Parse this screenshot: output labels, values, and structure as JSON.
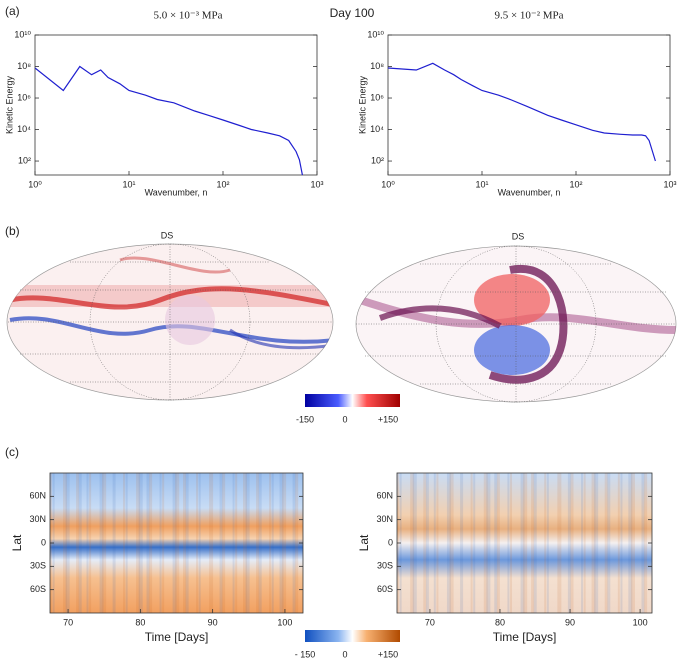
{
  "title": "Day 100",
  "panel_labels": [
    "(a)",
    "(b)",
    "(c)"
  ],
  "maps": {
    "titles": [
      "DS",
      "DS"
    ],
    "colorbar_ticks": [
      "-150",
      "0",
      "+150"
    ]
  },
  "hovmoller_colorbar_ticks": [
    "- 150",
    "0",
    "+150"
  ],
  "chart_data": [
    {
      "type": "line",
      "title": "5.0 × 10⁻³ MPa",
      "xlabel": "Wavenumber, n",
      "ylabel": "Kinetic Energy",
      "xscale": "log",
      "yscale": "log",
      "color": "#1f1fd0",
      "x": [
        1,
        2,
        3,
        4,
        5,
        6,
        8,
        10,
        15,
        20,
        30,
        50,
        70,
        100,
        150,
        200,
        300,
        400,
        500,
        600,
        650,
        700
      ],
      "values": [
        80000000,
        3000000,
        100000000,
        30000000,
        60000000,
        20000000,
        8000000,
        3000000,
        1500000,
        800000,
        500000,
        150000,
        80000,
        40000,
        18000,
        10000,
        6000,
        4000,
        2000,
        400,
        120,
        13
      ],
      "xlim": [
        1,
        1000
      ],
      "ylim": [
        13,
        10000000000
      ],
      "xticks": [
        {
          "value": 1,
          "label": "10⁰"
        },
        {
          "value": 10,
          "label": "10¹"
        },
        {
          "value": 100,
          "label": "10²"
        },
        {
          "value": 1000,
          "label": "10³"
        }
      ],
      "yticks": [
        {
          "value": 100,
          "label": "10²"
        },
        {
          "value": 10000,
          "label": "10⁴"
        },
        {
          "value": 1000000,
          "label": "10⁶"
        },
        {
          "value": 100000000,
          "label": "10⁸"
        },
        {
          "value": 10000000000,
          "label": "10¹⁰"
        }
      ]
    },
    {
      "type": "line",
      "title": "9.5 × 10⁻² MPa",
      "xlabel": "Wavenumber, n",
      "ylabel": "Kinetic Energy",
      "xscale": "log",
      "yscale": "log",
      "color": "#1f1fd0",
      "x": [
        1,
        2,
        3,
        4,
        5,
        6,
        8,
        10,
        15,
        20,
        30,
        50,
        70,
        100,
        150,
        200,
        300,
        400,
        500,
        550,
        600,
        700
      ],
      "values": [
        80000000,
        60000000,
        160000000,
        60000000,
        30000000,
        15000000,
        6000000,
        3000000,
        1500000,
        800000,
        300000,
        80000,
        40000,
        20000,
        9000,
        6000,
        5000,
        4500,
        4500,
        4000,
        2000,
        100
      ],
      "xlim": [
        1,
        1000
      ],
      "ylim": [
        13,
        10000000000
      ],
      "xticks": [
        {
          "value": 1,
          "label": "10⁰"
        },
        {
          "value": 10,
          "label": "10¹"
        },
        {
          "value": 100,
          "label": "10²"
        },
        {
          "value": 1000,
          "label": "10³"
        }
      ],
      "yticks": [
        {
          "value": 100,
          "label": "10²"
        },
        {
          "value": 10000,
          "label": "10⁴"
        },
        {
          "value": 1000000,
          "label": "10⁶"
        },
        {
          "value": 100000000,
          "label": "10⁸"
        },
        {
          "value": 10000000000,
          "label": "10¹⁰"
        }
      ]
    },
    {
      "type": "hovmoller",
      "xlabel": "Time [Days]",
      "ylabel": "Lat",
      "xlim": [
        67.5,
        102.5
      ],
      "ylim": [
        -90,
        90
      ],
      "xticks": [
        70,
        80,
        90,
        100
      ],
      "yticks": [
        {
          "value": -60,
          "label": "60S"
        },
        {
          "value": -30,
          "label": "30S"
        },
        0,
        {
          "value": 30,
          "label": "30N"
        },
        {
          "value": 60,
          "label": "60N"
        }
      ]
    },
    {
      "type": "hovmoller",
      "xlabel": "Time [Days]",
      "ylabel": "Lat",
      "xlim": [
        65.3,
        101.7
      ],
      "ylim": [
        -90,
        90
      ],
      "xticks": [
        70,
        80,
        90,
        100
      ],
      "yticks": [
        {
          "value": -60,
          "label": "60S"
        },
        {
          "value": -30,
          "label": "30S"
        },
        0,
        {
          "value": 30,
          "label": "30N"
        },
        {
          "value": 60,
          "label": "60N"
        }
      ]
    }
  ]
}
